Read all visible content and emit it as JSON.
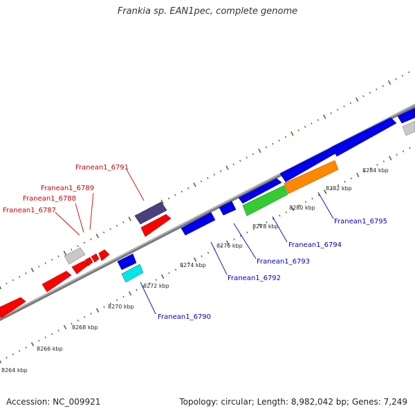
{
  "title": "Frankia sp. EAN1pec, complete genome",
  "footer": {
    "accession": "Accession: NC_009921",
    "stats": "Topology: circular; Length: 8,982,042 bp; Genes: 7,249"
  },
  "colors": {
    "backbone": "#8a8a8a",
    "tick": "#2e7d1e",
    "forward_label": "#cc0000",
    "reverse_label": "#0000cc",
    "red": "#ff0000",
    "blue": "#0000ee",
    "grey": "#c8c8c8",
    "navy": "#4a4080",
    "cyan": "#00e8e8",
    "green": "#33cc33",
    "orange": "#ff8800"
  },
  "kbp_labels": [
    "8264 kbp",
    "8266 kbp",
    "8268 kbp",
    "8270 kbp",
    "8272 kbp",
    "8274 kbp",
    "8276 kbp",
    "8278 kbp",
    "8280 kbp",
    "8282 kbp",
    "8284 kbp"
  ],
  "forward_gene_labels": [
    "Franean1_6791",
    "Franean1_6789",
    "Franean1_6788",
    "Franean1_6787"
  ],
  "reverse_gene_labels": [
    "Franean1_6790",
    "Franean1_6792",
    "Franean1_6793",
    "Franean1_6794",
    "Franean1_6795"
  ]
}
